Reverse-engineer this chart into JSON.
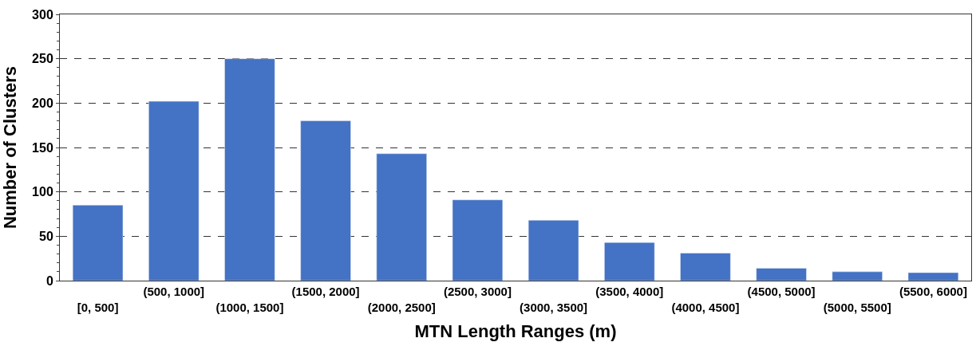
{
  "chart_data": {
    "type": "bar",
    "xlabel": "MTN Length Ranges (m)",
    "ylabel": "Number of Clusters",
    "categories": [
      "[0, 500]",
      "(500, 1000]",
      "(1000, 1500]",
      "(1500, 2000]",
      "(2000, 2500]",
      "(2500, 3000]",
      "(3000, 3500]",
      "(3500, 4000]",
      "(4000, 4500]",
      "(4500, 5000]",
      "(5000, 5500]",
      "(5500, 6000]"
    ],
    "values": [
      85,
      202,
      250,
      180,
      143,
      91,
      68,
      43,
      31,
      14,
      10,
      9
    ],
    "color": "#4472c4",
    "ylim": [
      0,
      300
    ],
    "yticks": [
      0,
      50,
      100,
      150,
      200,
      250,
      300
    ],
    "grid": "y",
    "line_style": "dashed"
  }
}
